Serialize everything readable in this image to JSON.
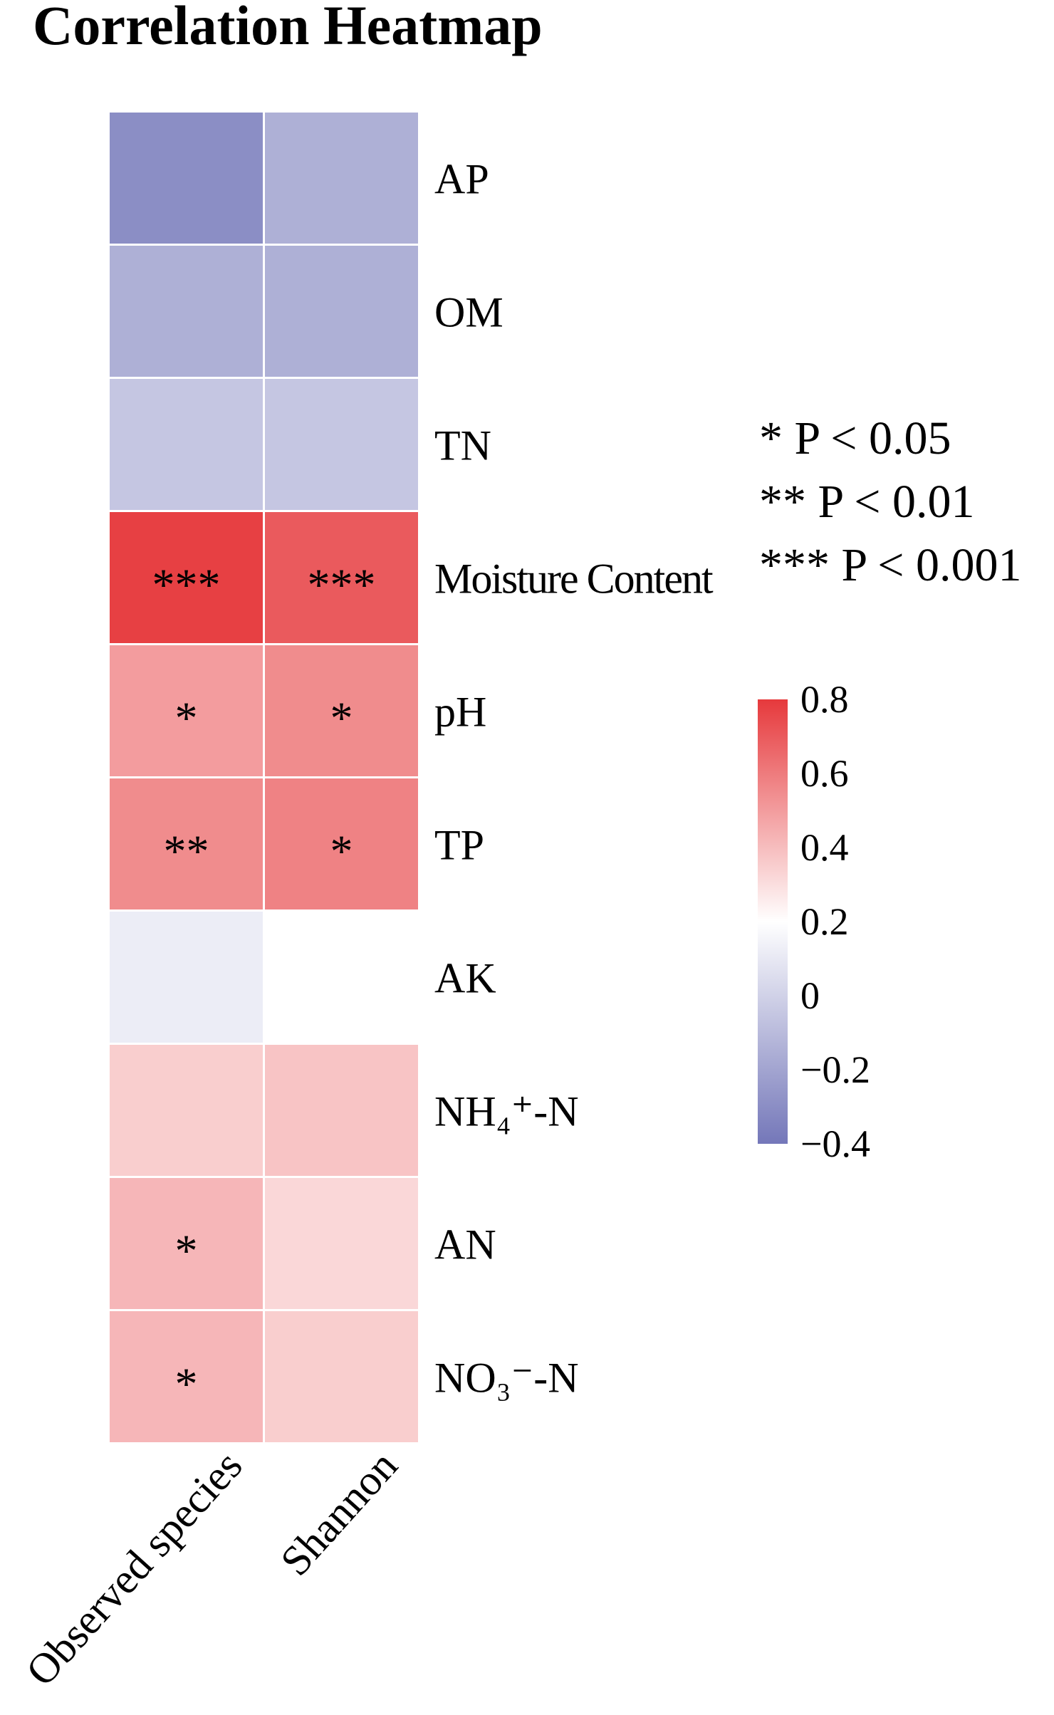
{
  "chart_data": {
    "type": "heatmap",
    "title": "Correlation Heatmap",
    "columns": [
      "Observed species",
      "Shannon"
    ],
    "rows": [
      "AP",
      "OM",
      "TN",
      "Moisture Content",
      "pH",
      "TP",
      "AK",
      "NH₄⁺-N",
      "AN",
      "NO₃⁻-N"
    ],
    "values": [
      [
        -0.3,
        -0.15
      ],
      [
        -0.15,
        -0.15
      ],
      [
        -0.05,
        -0.05
      ],
      [
        0.78,
        0.7
      ],
      [
        0.5,
        0.55
      ],
      [
        0.55,
        0.58
      ],
      [
        0.12,
        0.2
      ],
      [
        0.35,
        0.38
      ],
      [
        0.42,
        0.32
      ],
      [
        0.42,
        0.35
      ]
    ],
    "labels": [
      [
        null,
        null
      ],
      [
        null,
        null
      ],
      [
        null,
        null
      ],
      [
        "***",
        "***"
      ],
      [
        "*",
        "*"
      ],
      [
        "**",
        "*"
      ],
      [
        null,
        null
      ],
      [
        null,
        null
      ],
      [
        "*",
        null
      ],
      [
        "*",
        null
      ]
    ],
    "significance_notes": [
      "* P < 0.05",
      "** P < 0.01",
      "*** P < 0.001"
    ],
    "colormap": [
      "#7477b9",
      "#ffffff",
      "#e6393c"
    ],
    "cmap_center": 0.2,
    "clim": [
      -0.4,
      0.8
    ],
    "cticks": [
      0.8,
      0.6,
      0.4,
      0.2,
      0,
      {
        "value": -0.2,
        "label": "−0.2"
      },
      {
        "value": -0.4,
        "label": "−0.4"
      }
    ]
  }
}
